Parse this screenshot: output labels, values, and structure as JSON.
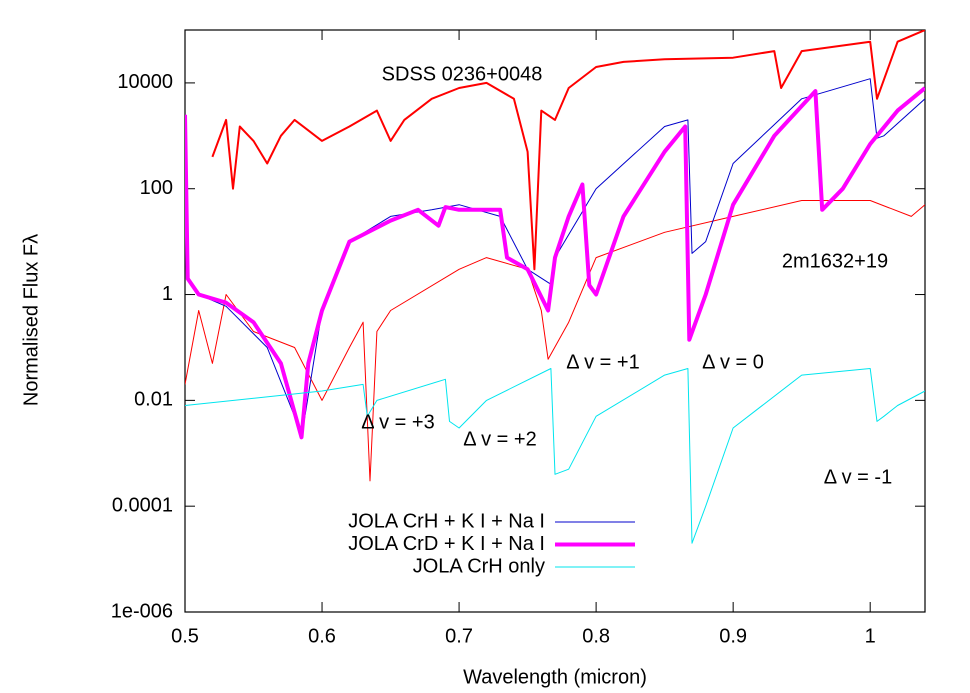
{
  "chart_data": {
    "type": "line",
    "x_label": "Wavelength (micron)",
    "y_label": "Normalised Flux Fλ",
    "xlim": [
      0.5,
      1.04
    ],
    "ylim": [
      1e-06,
      100000
    ],
    "ylog": true,
    "xticks": [
      0.5,
      0.6,
      0.7,
      0.8,
      0.9,
      1
    ],
    "yticks": [
      {
        "value": 1e-06,
        "label": "1e-006"
      },
      0.0001,
      0.01,
      1,
      100,
      10000
    ],
    "legend_position": "lower-center",
    "series": [
      {
        "name": "SDSS 0236+0048",
        "color": "#ff0000",
        "linewidth": 2,
        "legend": false,
        "x": [
          0.52,
          0.53,
          0.535,
          0.54,
          0.55,
          0.56,
          0.57,
          0.58,
          0.6,
          0.62,
          0.64,
          0.65,
          0.66,
          0.68,
          0.7,
          0.72,
          0.74,
          0.75,
          0.755,
          0.76,
          0.77,
          0.78,
          0.8,
          0.82,
          0.85,
          0.9,
          0.93,
          0.935,
          0.95,
          1.0,
          1.005,
          1.02,
          1.04
        ],
        "values": [
          400,
          2000,
          100,
          1500,
          800,
          300,
          1000,
          2000,
          800,
          1500,
          3000,
          800,
          2000,
          5000,
          8000,
          10000,
          5000,
          500,
          3,
          3000,
          2000,
          8000,
          20000,
          25000,
          28000,
          30000,
          40000,
          8000,
          40000,
          60000,
          5000,
          60000,
          100000
        ]
      },
      {
        "name": "2m1632+19",
        "color": "#ff0000",
        "linewidth": 1,
        "legend": false,
        "x": [
          0.5,
          0.51,
          0.52,
          0.53,
          0.55,
          0.58,
          0.6,
          0.62,
          0.63,
          0.635,
          0.64,
          0.65,
          0.7,
          0.72,
          0.75,
          0.76,
          0.765,
          0.78,
          0.8,
          0.85,
          0.9,
          0.95,
          1.0,
          1.03,
          1.04
        ],
        "values": [
          0.02,
          0.5,
          0.05,
          1,
          0.2,
          0.1,
          0.01,
          0.1,
          0.3,
          0.0003,
          0.2,
          0.5,
          3,
          5,
          3,
          0.5,
          0.06,
          0.3,
          5,
          15,
          30,
          60,
          60,
          30,
          50
        ]
      },
      {
        "name": "JOLA CrH + K I + Na I",
        "color": "#0000cc",
        "linewidth": 1,
        "legend": true,
        "x": [
          0.5,
          0.502,
          0.51,
          0.53,
          0.56,
          0.58,
          0.585,
          0.6,
          0.62,
          0.65,
          0.68,
          0.7,
          0.73,
          0.75,
          0.768,
          0.77,
          0.8,
          0.85,
          0.867,
          0.87,
          0.88,
          0.9,
          0.95,
          1.0,
          1.005,
          1.01,
          1.04
        ],
        "values": [
          2500,
          2,
          1,
          0.6,
          0.1,
          0.005,
          0.002,
          0.5,
          10,
          30,
          40,
          50,
          30,
          3,
          1.5,
          5,
          100,
          1500,
          2000,
          6,
          10,
          300,
          5000,
          12000,
          900,
          1000,
          5000
        ]
      },
      {
        "name": "JOLA CrD + K I + Na I",
        "color": "#ff00ff",
        "linewidth": 4,
        "legend": true,
        "x": [
          0.5,
          0.502,
          0.51,
          0.53,
          0.55,
          0.57,
          0.585,
          0.59,
          0.6,
          0.62,
          0.65,
          0.67,
          0.685,
          0.69,
          0.7,
          0.73,
          0.735,
          0.75,
          0.765,
          0.77,
          0.78,
          0.79,
          0.795,
          0.8,
          0.82,
          0.85,
          0.865,
          0.868,
          0.88,
          0.9,
          0.93,
          0.96,
          0.965,
          0.98,
          1.0,
          1.02,
          1.04
        ],
        "values": [
          2500,
          2,
          1,
          0.7,
          0.3,
          0.05,
          0.002,
          0.05,
          0.5,
          10,
          25,
          40,
          20,
          45,
          40,
          40,
          5,
          3,
          0.5,
          5,
          30,
          120,
          1.5,
          1,
          30,
          500,
          1500,
          0.14,
          1,
          50,
          1000,
          7000,
          40,
          100,
          700,
          3000,
          8000
        ]
      },
      {
        "name": "JOLA CrH only",
        "color": "#00e5ee",
        "linewidth": 1,
        "legend": true,
        "x": [
          0.5,
          0.6,
          0.63,
          0.633,
          0.64,
          0.69,
          0.693,
          0.7,
          0.72,
          0.767,
          0.77,
          0.78,
          0.8,
          0.85,
          0.867,
          0.87,
          0.88,
          0.9,
          0.95,
          1.0,
          1.005,
          1.01,
          1.02,
          1.04
        ],
        "values": [
          0.008,
          0.015,
          0.02,
          0.005,
          0.01,
          0.025,
          0.004,
          0.003,
          0.01,
          0.04,
          0.0004,
          0.0005,
          0.005,
          0.03,
          0.04,
          2e-05,
          0.0001,
          0.003,
          0.03,
          0.04,
          0.004,
          0.005,
          0.008,
          0.015
        ]
      }
    ],
    "annotations": [
      "Δ v = +1",
      "Δ v = 0",
      "Δ v = +3",
      "Δ v = +2",
      "Δ v = -1"
    ]
  }
}
